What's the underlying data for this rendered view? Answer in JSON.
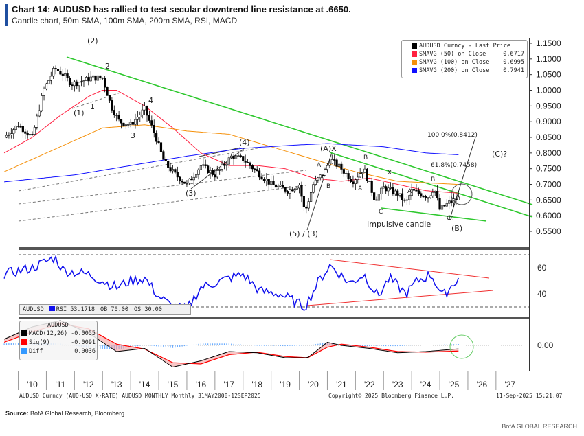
{
  "header": {
    "title": "Chart 14: AUDUSD has rallied to test secular downtrend line resistance at .6650.",
    "subtitle": "Candle chart, 50m SMA, 100m SMA, 200m SMA, RSI, MACD"
  },
  "legend": {
    "items": [
      {
        "label": "AUDUSD Curncy - Last Price",
        "value": "",
        "color": "#000000"
      },
      {
        "label": "SMAVG (50)  on Close",
        "value": "0.6717",
        "color": "#ff2040"
      },
      {
        "label": "SMAVG (100)  on Close",
        "value": "0.6995",
        "color": "#f5900a"
      },
      {
        "label": "SMAVG (200)  on Close",
        "value": "0.7941",
        "color": "#1010ff"
      }
    ]
  },
  "rsi_legend": {
    "ticker": "AUDUSD",
    "rsi": "RSI 53.1718",
    "ob": "OB 70.00",
    "os": "OS 30.00",
    "color": "#1010ee"
  },
  "macd_legend": {
    "ticker": "AUDUSD",
    "items": [
      {
        "label": "MACD(12,26)",
        "value": "-0.0055",
        "color": "#000000"
      },
      {
        "label": "Sig(9)",
        "value": "-0.0091",
        "color": "#ff0000"
      },
      {
        "label": "Diff",
        "value": "0.0036",
        "color": "#3399ff"
      }
    ]
  },
  "annotations": {
    "w2p": "(2)",
    "w2": "2",
    "w1p": "(1)",
    "w1": "1",
    "w3": "3",
    "w4": "4",
    "w4p": "(4)",
    "w3p": "(3)",
    "w53": "(5) / (3)",
    "a1": "A",
    "b1": "B",
    "ax": "(A)X",
    "b2": "B",
    "a2": "A",
    "c1": "C",
    "x2": "X",
    "a3": "A",
    "b3": "B",
    "c2": "C",
    "bp": "(B)",
    "impulse": "Impulsive candle",
    "fib100": "100.0%(0.8412)",
    "fib618": "61.8%(0.7458)",
    "cq": "(C)?"
  },
  "footer": {
    "left": "AUDUSD Curncy (AUD-USD X-RATE) AUDUSD MONTHLY  Monthly 31MAY2000-12SEP2025",
    "center": "Copyright© 2025 Bloomberg Finance L.P.",
    "right": "11-Sep-2025 15:21:07",
    "source_label": "Source:",
    "source": "BofA Global Research, Bloomberg",
    "brand": "BofA GLOBAL RESEARCH"
  },
  "chart_data": [
    {
      "type": "candlestick",
      "ylim": [
        0.55,
        1.15
      ],
      "yticks": [
        "1.1500",
        "1.1000",
        "1.0500",
        "1.0000",
        "0.9500",
        "0.9000",
        "0.8500",
        "0.8000",
        "0.7500",
        "0.7000",
        "0.6500",
        "0.6000",
        "0.5500"
      ],
      "xticks": [
        "'10",
        "'11",
        "'12",
        "'13",
        "'14",
        "'15",
        "'16",
        "'17",
        "'18",
        "'19",
        "'20",
        "'21",
        "'22",
        "'23",
        "'24",
        "'25",
        "'26",
        "'27"
      ],
      "series": [
        {
          "name": "AUDUSD Curncy - Last Price",
          "x": [
            2009.5,
            2010.0,
            2010.5,
            2010.9,
            2011.3,
            2011.6,
            2011.9,
            2012.3,
            2012.6,
            2013.0,
            2013.3,
            2013.6,
            2014.0,
            2014.5,
            2014.9,
            2015.2,
            2015.6,
            2016.0,
            2016.5,
            2017.0,
            2017.6,
            2018.0,
            2018.5,
            2019.0,
            2019.6,
            2020.0,
            2020.2,
            2020.5,
            2020.9,
            2021.1,
            2021.5,
            2021.9,
            2022.3,
            2022.7,
            2023.0,
            2023.5,
            2023.8,
            2024.0,
            2024.6,
            2024.8,
            2025.0,
            2025.3,
            2025.7
          ],
          "y": [
            0.85,
            0.89,
            0.85,
            1.0,
            1.07,
            1.05,
            1.02,
            1.03,
            1.04,
            1.04,
            0.95,
            0.9,
            0.89,
            0.94,
            0.85,
            0.77,
            0.73,
            0.7,
            0.76,
            0.73,
            0.79,
            0.78,
            0.74,
            0.7,
            0.68,
            0.7,
            0.61,
            0.7,
            0.74,
            0.78,
            0.75,
            0.71,
            0.75,
            0.65,
            0.69,
            0.67,
            0.64,
            0.68,
            0.66,
            0.69,
            0.62,
            0.64,
            0.657
          ]
        },
        {
          "name": "SMAVG (50) on Close",
          "color": "#ff2040",
          "x": [
            2009.5,
            2010.5,
            2011.5,
            2012.5,
            2013.0,
            2013.5,
            2014.5,
            2015.5,
            2016.5,
            2017.5,
            2018.5,
            2019.5,
            2020.5,
            2021.5,
            2022.5,
            2023.5,
            2024.5,
            2025.7
          ],
          "y": [
            0.8,
            0.85,
            0.92,
            0.98,
            1.0,
            1.0,
            0.95,
            0.88,
            0.8,
            0.76,
            0.76,
            0.75,
            0.72,
            0.71,
            0.72,
            0.7,
            0.68,
            0.6717
          ]
        },
        {
          "name": "SMAVG (100) on Close",
          "color": "#f5900a",
          "x": [
            2009.5,
            2011.5,
            2013.0,
            2014.5,
            2016.0,
            2017.5,
            2019.0,
            2020.5,
            2022.0,
            2023.5,
            2025.7
          ],
          "y": [
            0.74,
            0.82,
            0.88,
            0.89,
            0.87,
            0.86,
            0.82,
            0.78,
            0.74,
            0.71,
            0.6995
          ]
        },
        {
          "name": "SMAVG (200) on Close",
          "color": "#1010ff",
          "x": [
            2009.5,
            2012.0,
            2014.0,
            2016.0,
            2018.0,
            2020.0,
            2021.0,
            2023.0,
            2024.5,
            2025.7
          ],
          "y": [
            0.708,
            0.73,
            0.76,
            0.79,
            0.815,
            0.826,
            0.83,
            0.82,
            0.8,
            0.7941
          ]
        }
      ]
    },
    {
      "type": "line",
      "ylim": [
        22,
        72
      ],
      "yticks": [
        "60",
        "40"
      ],
      "overbought": 70,
      "oversold": 30,
      "series": [
        {
          "name": "RSI",
          "color": "#1010ee",
          "x": [
            2009.5,
            2010.5,
            2011.3,
            2011.6,
            2012.5,
            2013.5,
            2014.0,
            2014.5,
            2015.0,
            2015.5,
            2016.0,
            2016.5,
            2017.5,
            2018.0,
            2018.6,
            2019.3,
            2020.2,
            2020.7,
            2021.1,
            2021.8,
            2022.3,
            2022.8,
            2023.2,
            2023.8,
            2024.2,
            2024.7,
            2025.1,
            2025.7
          ],
          "y": [
            55,
            60,
            68,
            58,
            55,
            45,
            50,
            52,
            38,
            30,
            28,
            45,
            52,
            55,
            42,
            40,
            30,
            50,
            62,
            48,
            55,
            38,
            52,
            40,
            50,
            55,
            38,
            53.17
          ]
        }
      ]
    },
    {
      "type": "line",
      "ylim": [
        -0.045,
        0.04
      ],
      "yticks": [
        "0.00"
      ],
      "series": [
        {
          "name": "MACD(12,26)",
          "color": "#000000",
          "x": [
            2009.5,
            2010.5,
            2011.5,
            2012.5,
            2013.5,
            2014.5,
            2015.5,
            2016.5,
            2017.5,
            2018.5,
            2019.5,
            2020.3,
            2021.0,
            2021.5,
            2022.5,
            2023.5,
            2024.5,
            2025.7
          ],
          "y": [
            0.01,
            0.03,
            0.04,
            0.02,
            -0.01,
            -0.005,
            -0.035,
            -0.025,
            -0.01,
            -0.012,
            -0.02,
            -0.02,
            0.005,
            0.0,
            -0.005,
            -0.012,
            -0.01,
            -0.0055
          ]
        },
        {
          "name": "Sig(9)",
          "color": "#ff0000",
          "x": [
            2009.5,
            2010.5,
            2011.5,
            2012.5,
            2013.5,
            2014.5,
            2015.5,
            2016.5,
            2017.5,
            2018.5,
            2019.5,
            2020.3,
            2021.0,
            2021.5,
            2022.5,
            2023.5,
            2024.5,
            2025.7
          ],
          "y": [
            0.005,
            0.022,
            0.035,
            0.027,
            0.002,
            -0.006,
            -0.028,
            -0.03,
            -0.015,
            -0.011,
            -0.018,
            -0.02,
            -0.003,
            0.002,
            -0.003,
            -0.01,
            -0.011,
            -0.0091
          ]
        }
      ]
    }
  ]
}
